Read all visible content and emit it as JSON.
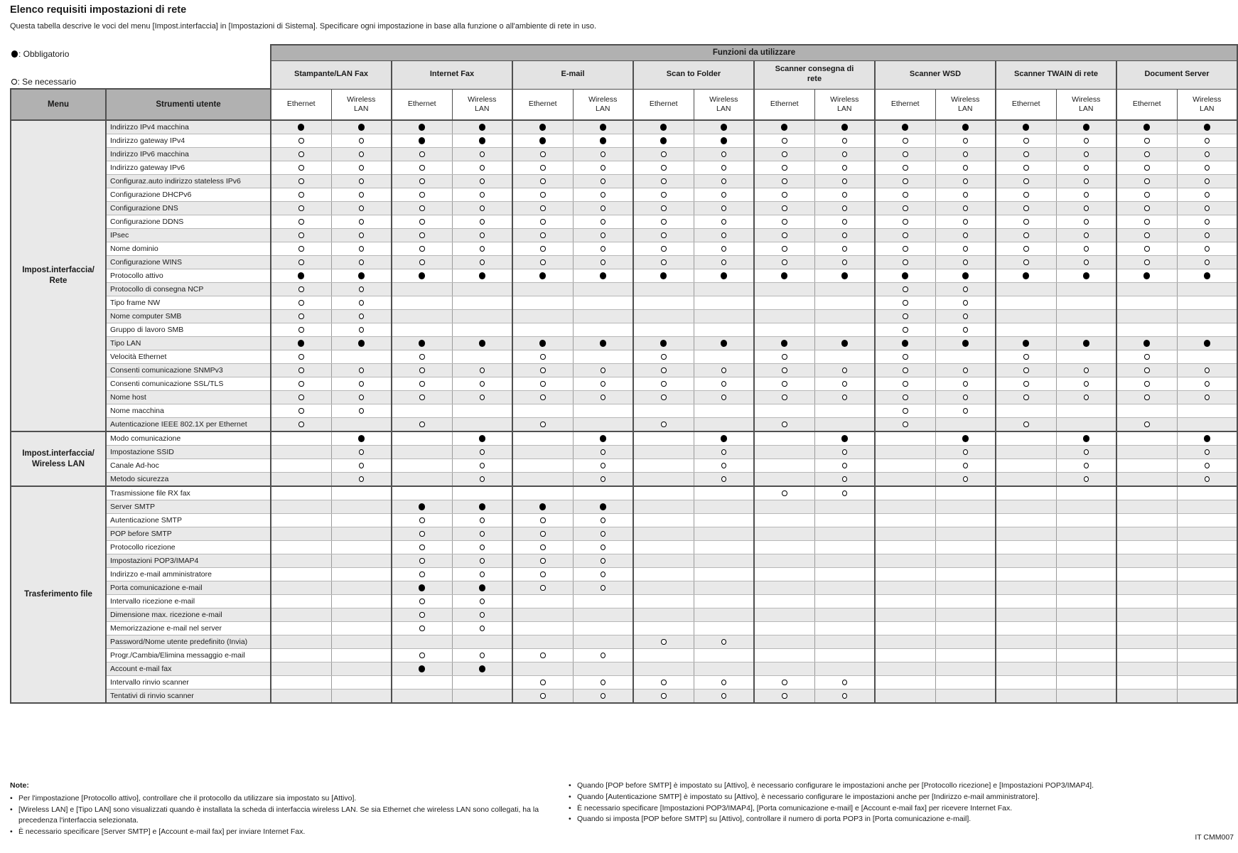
{
  "page": {
    "title": "Elenco requisiti impostazioni di rete",
    "subtitle": "Questa tabella descrive le voci del menu [Impost.interfaccia] in [Impostazioni di Sistema]. Specificare ogni impostazione in base alla funzione o all'ambiente di rete in uso.",
    "footer_code": "IT CMM007"
  },
  "legend": {
    "required_label": ": Obbligatorio",
    "optional_label": ": Se necessario"
  },
  "table": {
    "functions_header": "Funzioni da utilizzare",
    "menu_header": "Menu",
    "tools_header": "Strumenti utente",
    "ethernet_label": "Ethernet",
    "wireless_label": "Wireless\nLAN",
    "function_groups": [
      "Stampante/LAN Fax",
      "Internet Fax",
      "E-mail",
      "Scan to Folder",
      "Scanner consegna di\nrete",
      "Scanner WSD",
      "Scanner TWAIN di rete",
      "Document Server"
    ],
    "symbols": {
      "required": "F",
      "optional": "O",
      "empty": "."
    },
    "menu_groups": [
      {
        "label": "Impost.interfaccia/\nRete",
        "rows": [
          {
            "label": "Indirizzo IPv4 macchina",
            "cells": "FFFFFFFFFFFFFFFF"
          },
          {
            "label": "Indirizzo gateway IPv4",
            "cells": "OOFFFFFFOOOOOOOO"
          },
          {
            "label": "Indirizzo IPv6 macchina",
            "cells": "OOOOOOOOOOOOOOOO"
          },
          {
            "label": "Indirizzo gateway IPv6",
            "cells": "OOOOOOOOOOOOOOOO"
          },
          {
            "label": "Configuraz.auto indirizzo stateless IPv6",
            "cells": "OOOOOOOOOOOOOOOO"
          },
          {
            "label": "Configurazione DHCPv6",
            "cells": "OOOOOOOOOOOOOOOO"
          },
          {
            "label": "Configurazione DNS",
            "cells": "OOOOOOOOOOOOOOOO"
          },
          {
            "label": "Configurazione DDNS",
            "cells": "OOOOOOOOOOOOOOOO"
          },
          {
            "label": "IPsec",
            "cells": "OOOOOOOOOOOOOOOO"
          },
          {
            "label": "Nome dominio",
            "cells": "OOOOOOOOOOOOOOOO"
          },
          {
            "label": "Configurazione WINS",
            "cells": "OOOOOOOOOOOOOOOO"
          },
          {
            "label": "Protocollo attivo",
            "cells": "FFFFFFFFFFFFFFFF"
          },
          {
            "label": "Protocollo di consegna NCP",
            "cells": "OO........OO...."
          },
          {
            "label": "Tipo frame NW",
            "cells": "OO........OO...."
          },
          {
            "label": "Nome computer SMB",
            "cells": "OO........OO...."
          },
          {
            "label": "Gruppo di lavoro SMB",
            "cells": "OO........OO...."
          },
          {
            "label": "Tipo LAN",
            "cells": "FFFFFFFFFFFFFFFF"
          },
          {
            "label": "Velocità Ethernet",
            "cells": "O.O.O.O.O.O.O.O."
          },
          {
            "label": "Consenti comunicazione SNMPv3",
            "cells": "OOOOOOOOOOOOOOOO"
          },
          {
            "label": "Consenti comunicazione SSL/TLS",
            "cells": "OOOOOOOOOOOOOOOO"
          },
          {
            "label": "Nome host",
            "cells": "OOOOOOOOOOOOOOOO"
          },
          {
            "label": "Nome macchina",
            "cells": "OO........OO...."
          },
          {
            "label": "Autenticazione IEEE 802.1X per Ethernet",
            "cells": "O.O.O.O.O.O.O.O."
          }
        ]
      },
      {
        "label": "Impost.interfaccia/\nWireless LAN",
        "rows": [
          {
            "label": "Modo comunicazione",
            "cells": ".F.F.F.F.F.F.F.F"
          },
          {
            "label": "Impostazione SSID",
            "cells": ".O.O.O.O.O.O.O.O"
          },
          {
            "label": "Canale Ad-hoc",
            "cells": ".O.O.O.O.O.O.O.O"
          },
          {
            "label": "Metodo sicurezza",
            "cells": ".O.O.O.O.O.O.O.O"
          }
        ]
      },
      {
        "label": "Trasferimento file",
        "rows": [
          {
            "label": "Trasmissione file RX fax",
            "cells": "........OO......"
          },
          {
            "label": "Server SMTP",
            "cells": "..FFFF.........."
          },
          {
            "label": "Autenticazione SMTP",
            "cells": "..OOOO.........."
          },
          {
            "label": "POP before SMTP",
            "cells": "..OOOO.........."
          },
          {
            "label": "Protocollo ricezione",
            "cells": "..OOOO.........."
          },
          {
            "label": "Impostazioni POP3/IMAP4",
            "cells": "..OOOO.........."
          },
          {
            "label": "Indirizzo e-mail amministratore",
            "cells": "..OOOO.........."
          },
          {
            "label": "Porta comunicazione e-mail",
            "cells": "..FFOO.........."
          },
          {
            "label": "Intervallo ricezione e-mail",
            "cells": "..OO............"
          },
          {
            "label": "Dimensione max. ricezione e-mail",
            "cells": "..OO............"
          },
          {
            "label": "Memorizzazione e-mail nel server",
            "cells": "..OO............"
          },
          {
            "label": "Password/Nome utente predefinito (Invia)",
            "cells": "......OO........"
          },
          {
            "label": "Progr./Cambia/Elimina messaggio e-mail",
            "cells": "..OOOO.........."
          },
          {
            "label": "Account e-mail fax",
            "cells": "..FF............"
          },
          {
            "label": "Intervallo rinvio scanner",
            "cells": "....OOOOOO......"
          },
          {
            "label": "Tentativi di rinvio scanner",
            "cells": "....OOOOOO......"
          }
        ]
      }
    ]
  },
  "notes": {
    "heading": "Note:",
    "bullet": "•",
    "left": [
      "Per l'impostazione [Protocollo attivo], controllare che il protocollo da utilizzare sia impostato su [Attivo].",
      "[Wireless LAN] e [Tipo LAN] sono visualizzati quando è installata la scheda di interfaccia wireless LAN. Se sia Ethernet che wireless LAN sono collegati, ha la precedenza l'interfaccia selezionata.",
      "È necessario specificare [Server SMTP] e [Account e-mail fax] per inviare Internet Fax."
    ],
    "right": [
      "Quando [POP before SMTP] è impostato su [Attivo], è necessario configurare le impostazioni anche per [Protocollo ricezione] e [Impostazioni POP3/IMAP4].",
      "Quando [Autenticazione SMTP] è impostato su [Attivo], è necessario configurare le impostazioni anche per [Indirizzo e-mail amministratore].",
      "È necessario specificare [Impostazioni POP3/IMAP4], [Porta comunicazione e-mail] e [Account e-mail fax] per ricevere Internet Fax.",
      "Quando si imposta [POP before SMTP] su [Attivo], controllare il numero di porta POP3 in [Porta comunicazione e-mail]."
    ]
  },
  "colors": {
    "header_gray": "#b1b1b1",
    "group_header_gray": "#e3e3e3",
    "row_alt": "#e9e9e9",
    "border_dark": "#4f4f4f",
    "grid_vertical": "#9a9a9a",
    "grid_horizontal": "#b7b7b7"
  }
}
